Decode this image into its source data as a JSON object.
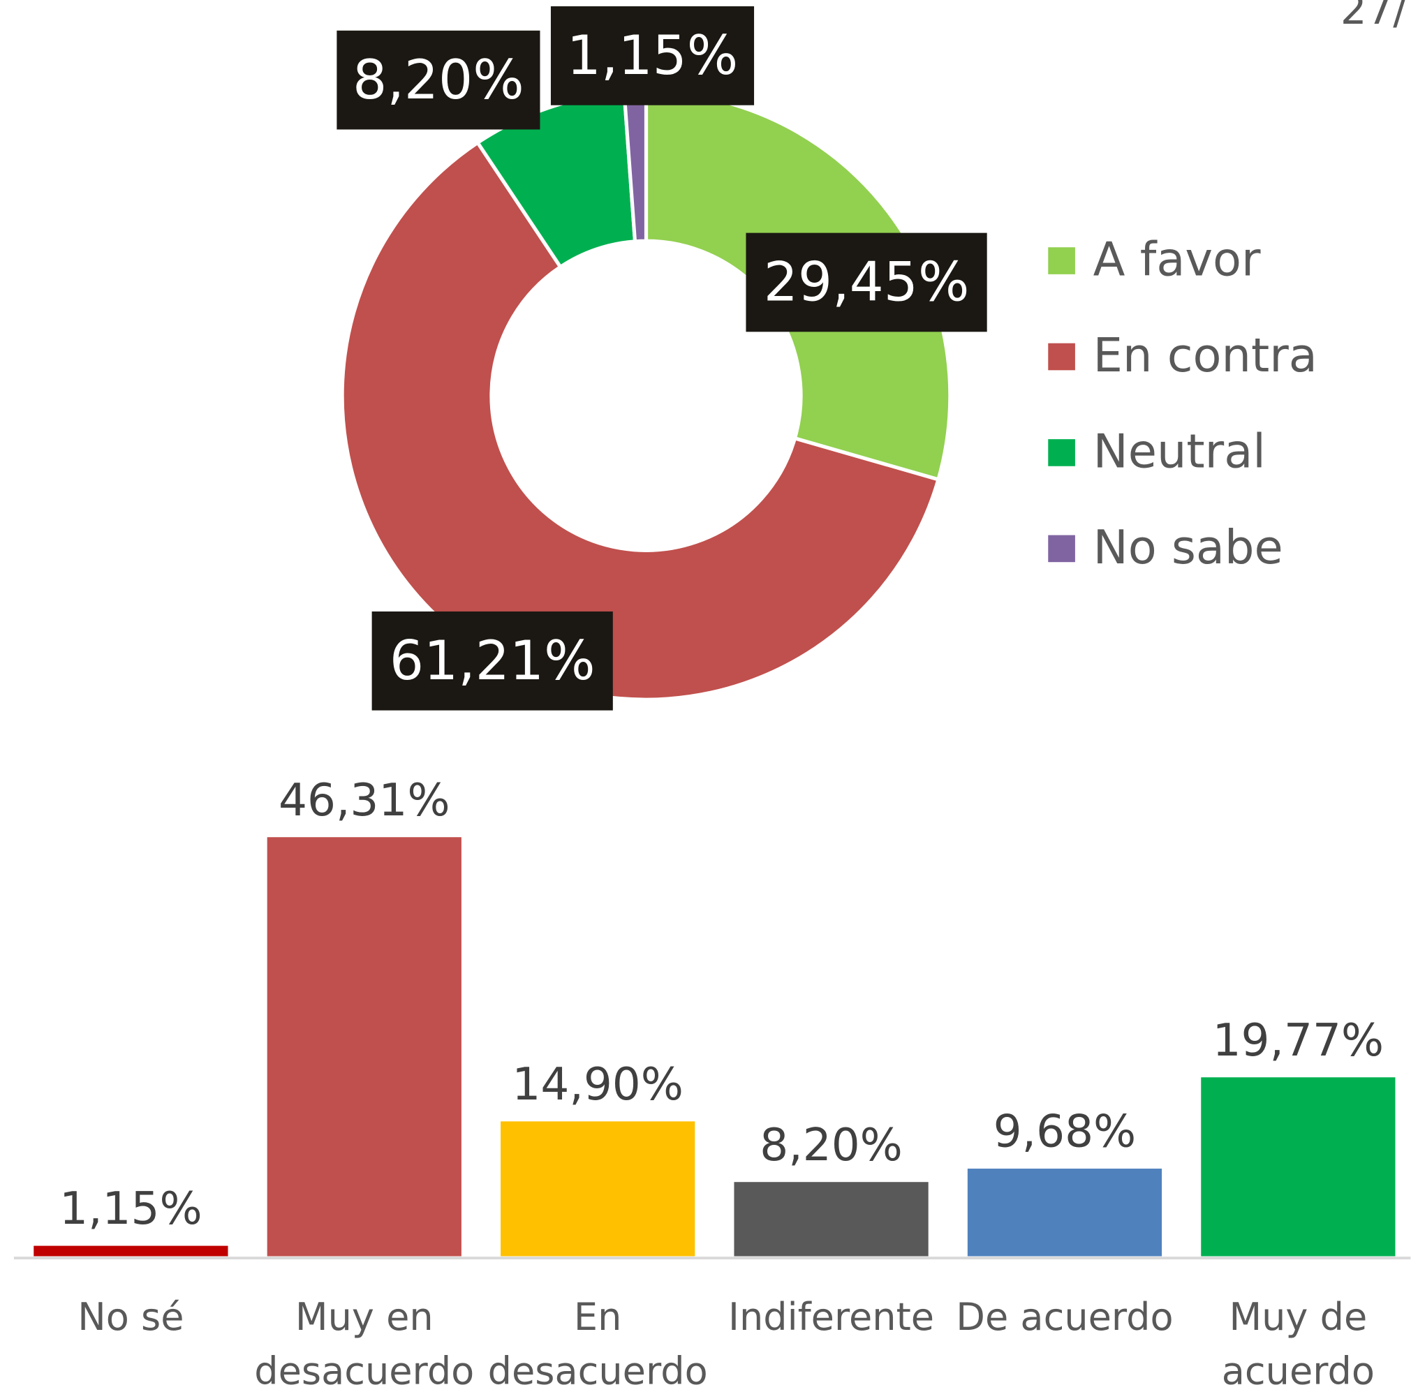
{
  "page_number": "27/",
  "chart_data": [
    {
      "type": "donut",
      "categories": [
        "A favor",
        "En contra",
        "Neutral",
        "No sabe"
      ],
      "values": [
        29.45,
        61.21,
        8.2,
        1.15
      ],
      "value_labels": [
        "29,45%",
        "61,21%",
        "8,20%",
        "1,15%"
      ],
      "colors": [
        "#92d050",
        "#c0504d",
        "#00b050",
        "#8064a2"
      ],
      "legend": "right"
    },
    {
      "type": "bar",
      "categories": [
        "No sé",
        "Muy en desacuerdo",
        "En desacuerdo",
        "Indiferente",
        "De acuerdo",
        "Muy de acuerdo"
      ],
      "values": [
        1.15,
        46.31,
        14.9,
        8.2,
        9.68,
        19.77
      ],
      "value_labels": [
        "1,15%",
        "46,31%",
        "14,90%",
        "8,20%",
        "9,68%",
        "19,77%"
      ],
      "colors": [
        "#c00000",
        "#c0504d",
        "#ffc000",
        "#595959",
        "#4f81bd",
        "#00b050"
      ]
    }
  ]
}
